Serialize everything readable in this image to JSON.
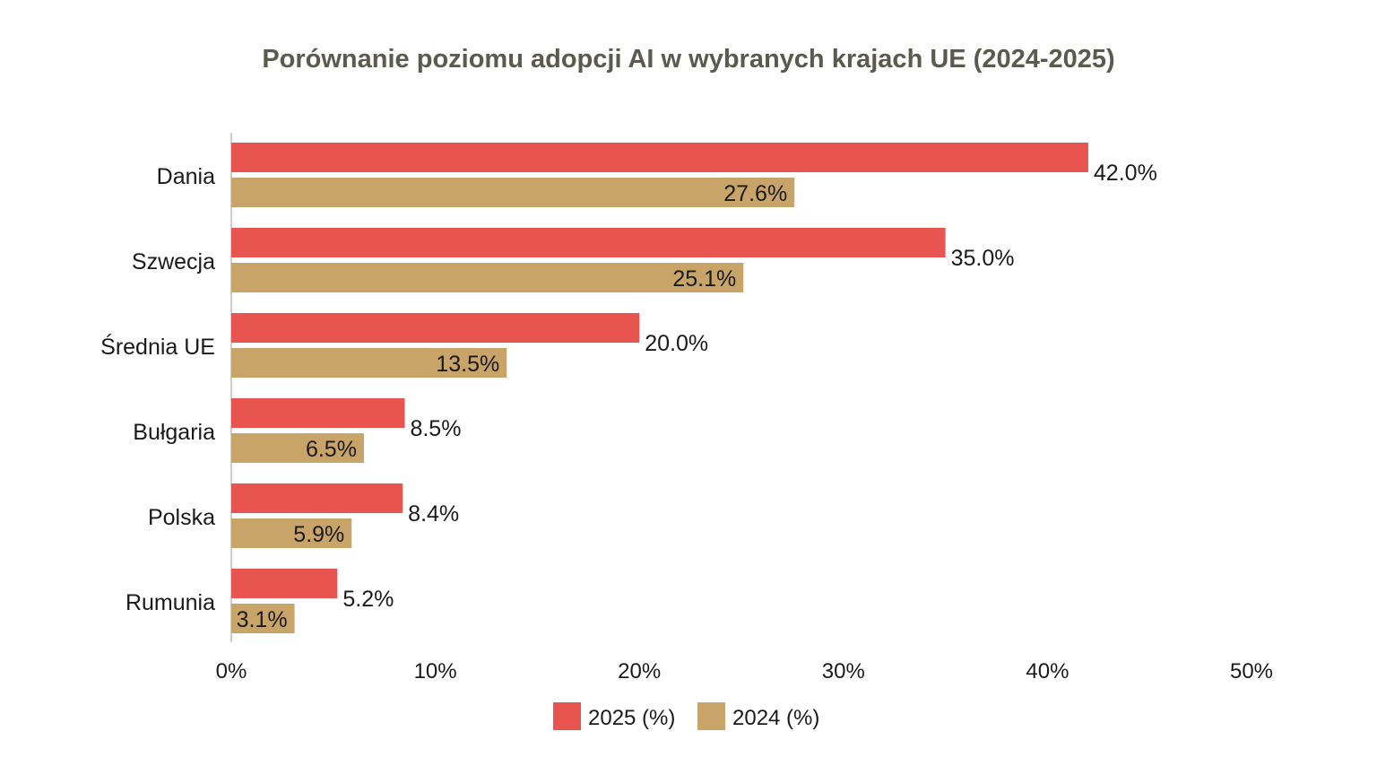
{
  "chart_data": {
    "type": "bar",
    "orientation": "horizontal",
    "title": "Porównanie poziomu adopcji AI w wybranych krajach UE (2024-2025)",
    "xlabel": "",
    "ylabel": "",
    "xlim": [
      0,
      50
    ],
    "x_ticks": [
      "0%",
      "10%",
      "20%",
      "30%",
      "40%",
      "50%"
    ],
    "x_tick_values": [
      0,
      10,
      20,
      30,
      40,
      50
    ],
    "grid": false,
    "legend_position": "bottom-center",
    "categories": [
      "Dania",
      "Szwecja",
      "Średnia UE",
      "Bułgaria",
      "Polska",
      "Rumunia"
    ],
    "series": [
      {
        "name": "2025 (%)",
        "color": "#e85550",
        "values": [
          42.0,
          35.0,
          20.0,
          8.5,
          8.4,
          5.2
        ],
        "labels": [
          "42.0%",
          "35.0%",
          "20.0%",
          "8.5%",
          "8.4%",
          "5.2%"
        ]
      },
      {
        "name": "2024 (%)",
        "color": "#c8a468",
        "values": [
          27.6,
          25.1,
          13.5,
          6.5,
          5.9,
          3.1
        ],
        "labels": [
          "27.6%",
          "25.1%",
          "13.5%",
          "6.5%",
          "5.9%",
          "3.1%"
        ]
      }
    ]
  }
}
